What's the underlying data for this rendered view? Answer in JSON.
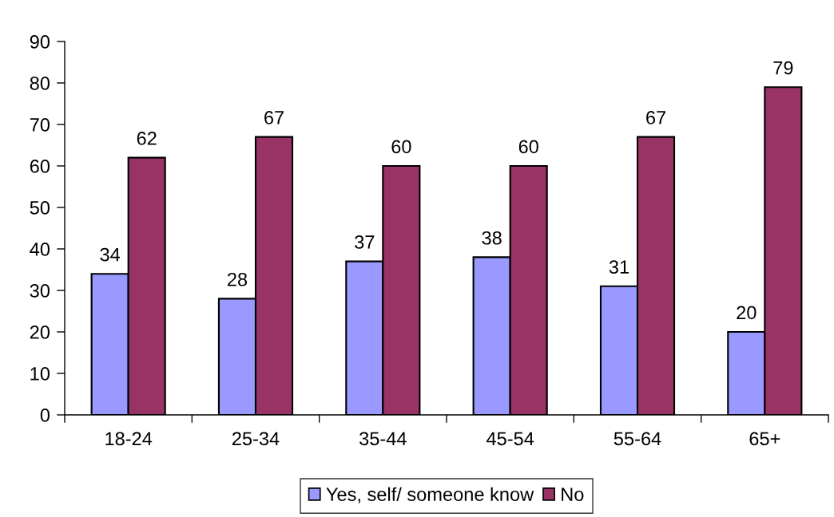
{
  "chart_data": {
    "type": "bar",
    "categories": [
      "18-24",
      "25-34",
      "35-44",
      "45-54",
      "55-64",
      "65+"
    ],
    "series": [
      {
        "name": "Yes, self/ someone know",
        "color": "#9999ff",
        "values": [
          34,
          28,
          37,
          38,
          31,
          20
        ]
      },
      {
        "name": "No",
        "color": "#993366",
        "values": [
          62,
          67,
          60,
          60,
          67,
          79
        ]
      }
    ],
    "ylim": [
      0,
      90
    ],
    "yticks": [
      0,
      10,
      20,
      30,
      40,
      50,
      60,
      70,
      80,
      90
    ],
    "data_labels": true,
    "legend": "bottom",
    "grid": false
  }
}
